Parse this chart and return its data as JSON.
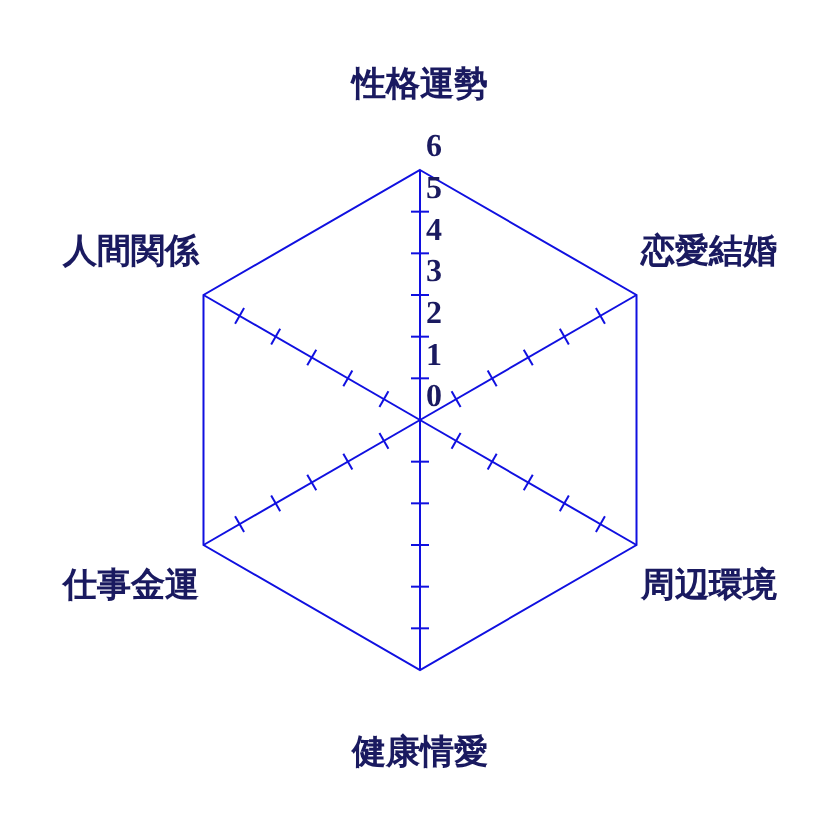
{
  "chart_data": {
    "type": "radar",
    "categories": [
      "性格運勢",
      "恋愛結婚",
      "周辺環境",
      "健康情愛",
      "仕事金運",
      "人間関係"
    ],
    "values": [
      null,
      null,
      null,
      null,
      null,
      null
    ],
    "ylim": [
      0,
      6
    ],
    "yticks": [
      0,
      1,
      2,
      3,
      4,
      5,
      6
    ],
    "grid": false
  }
}
